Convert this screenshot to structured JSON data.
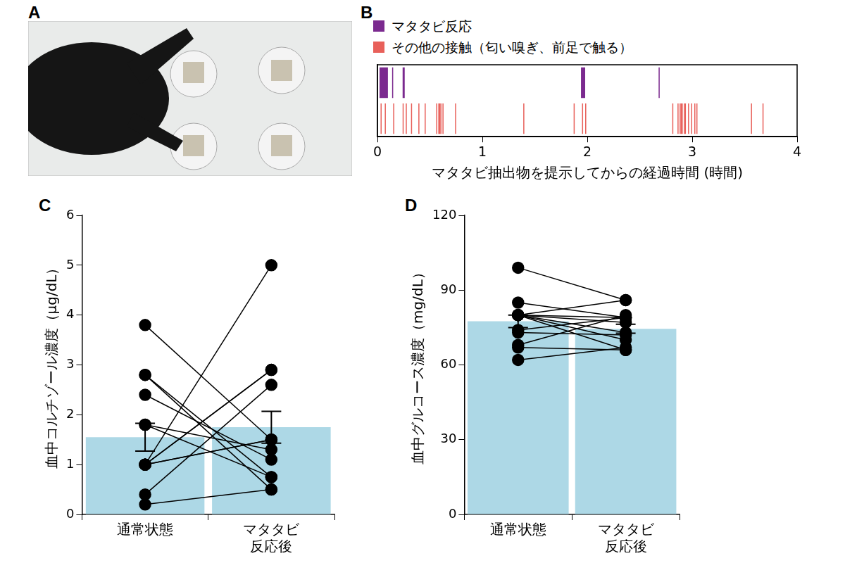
{
  "chart_data": [
    {
      "panel_label": "A",
      "type": "image"
    },
    {
      "panel_label": "B",
      "type": "timeline",
      "series": [
        {
          "name": "マタタビ反応",
          "color": "#7b2a8f",
          "intervals": [
            [
              0.02,
              0.1
            ],
            [
              0.14,
              0.15
            ],
            [
              0.24,
              0.26
            ],
            [
              1.94,
              1.98
            ],
            [
              2.68,
              2.685
            ]
          ]
        },
        {
          "name": "その他の接触（匂い嗅ぎ、前足で触る）",
          "color": "#e8605a",
          "values": [
            0.03,
            0.07,
            0.15,
            0.24,
            0.27,
            0.32,
            0.39,
            0.45,
            0.56,
            0.58,
            0.59,
            0.6,
            0.62,
            0.74,
            1.39,
            1.87,
            1.95,
            1.98,
            2.81,
            2.86,
            2.88,
            2.89,
            2.9,
            2.92,
            2.93,
            2.96,
            2.99,
            3.02,
            3.04,
            3.56,
            3.67
          ]
        }
      ],
      "x_label": "マタタビ抽出物を提示してからの経過時間 (時間)",
      "xlim": [
        0,
        4
      ],
      "xticks": [
        0,
        1,
        2,
        3,
        4
      ],
      "tick_labels": "x",
      "legend": "top-left",
      "grid": false
    },
    {
      "panel_label": "C",
      "type": "bar",
      "categories": [
        "通常状態",
        "マタタビ\n反応後"
      ],
      "values": [
        1.55,
        1.75
      ],
      "errors": [
        0.28,
        0.32
      ],
      "individual": [
        [
          3.8,
          1.5
        ],
        [
          2.8,
          0.5
        ],
        [
          2.8,
          0.75
        ],
        [
          2.4,
          1.1
        ],
        [
          1.8,
          0.75
        ],
        [
          1.8,
          1.3
        ],
        [
          1.0,
          5.0
        ],
        [
          1.0,
          2.9
        ],
        [
          1.0,
          2.9
        ],
        [
          1.0,
          1.5
        ],
        [
          1.0,
          1.5
        ],
        [
          0.4,
          2.6
        ],
        [
          0.2,
          0.5
        ]
      ],
      "marker": "circle",
      "color": "#add8e6",
      "y_label": "血中コルチゾール濃度（μg/dL）",
      "ylim": [
        0,
        6
      ],
      "yticks": [
        0,
        1,
        2,
        3,
        4,
        5,
        6
      ],
      "grid": false
    },
    {
      "panel_label": "D",
      "type": "bar",
      "categories": [
        "通常状態",
        "マタタビ\n反応後"
      ],
      "values": [
        77.5,
        74.5
      ],
      "errors": [
        2.5,
        1.8
      ],
      "individual": [
        [
          99,
          86
        ],
        [
          85,
          79
        ],
        [
          80,
          86
        ],
        [
          80,
          79
        ],
        [
          80,
          77
        ],
        [
          80,
          73
        ],
        [
          80,
          70
        ],
        [
          80,
          66
        ],
        [
          74,
          79
        ],
        [
          73,
          72
        ],
        [
          68,
          80
        ],
        [
          67,
          66
        ],
        [
          62,
          67
        ]
      ],
      "marker": "circle",
      "color": "#add8e6",
      "y_label": "血中グルコース濃度（mg/dL）",
      "ylim": [
        0,
        120
      ],
      "yticks": [
        0,
        30,
        60,
        90,
        120
      ],
      "grid": false
    }
  ]
}
